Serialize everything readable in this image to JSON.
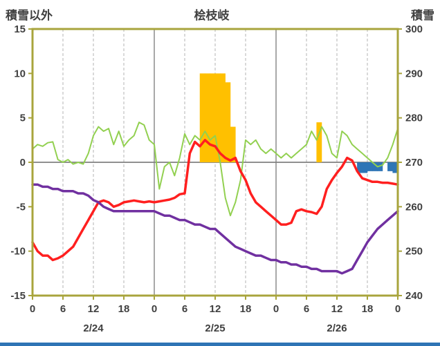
{
  "chart_data": {
    "type": "line",
    "title": "桧枝岐",
    "ylabel_left": "積雪以外",
    "ylabel_right": "積雪",
    "x_unit": "hour",
    "x_range": [
      0,
      72
    ],
    "x_ticks": {
      "positions": [
        0,
        6,
        12,
        18,
        24,
        30,
        36,
        42,
        48,
        54,
        60,
        66,
        72
      ],
      "labels": [
        "0",
        "6",
        "12",
        "18",
        "0",
        "6",
        "12",
        "18",
        "0",
        "6",
        "12",
        "18",
        "0"
      ]
    },
    "date_labels": [
      {
        "label": "2/24",
        "center_hour": 12
      },
      {
        "label": "2/25",
        "center_hour": 36
      },
      {
        "label": "2/26",
        "center_hour": 60
      }
    ],
    "left_axis": {
      "min": -15,
      "max": 15,
      "ticks": [
        15,
        10,
        5,
        0,
        -5,
        -10,
        -15
      ]
    },
    "right_axis": {
      "min": 240,
      "max": 300,
      "ticks": [
        300,
        290,
        280,
        270,
        260,
        250,
        240
      ]
    },
    "grid": {
      "vertical_minor": "dashed",
      "vertical_day_boundary": "solid",
      "horizontal": "zero-line-only"
    },
    "frame_color": "#A8A43C",
    "text_color": "#404040",
    "zero_line_color": "#808080",
    "minor_grid_color": "#b3b3b3",
    "day_grid_color": "#8c8c8c",
    "footer_bar_color": "#2E74B5",
    "series": [
      {
        "name": "orange-bars",
        "type": "bar",
        "axis": "left",
        "color": "#FFC000",
        "values_by_hour": {
          "33": 10,
          "34": 10,
          "35": 10,
          "36": 10,
          "37": 10,
          "38": 9,
          "39": 4,
          "56": 4.5
        }
      },
      {
        "name": "blue-bars",
        "type": "bar",
        "axis": "left",
        "color": "#2E75B6",
        "values_by_hour": {
          "64": -1.2,
          "65": -1.2,
          "66": -1,
          "67": -1,
          "68": -1,
          "70": -1,
          "71": -1.2
        }
      },
      {
        "name": "green-line",
        "type": "line",
        "axis": "left",
        "color": "#92D050",
        "width": 2,
        "values": [
          1.5,
          2.0,
          1.8,
          2.2,
          2.3,
          0.3,
          0.0,
          0.3,
          -0.2,
          0.0,
          -0.2,
          1.0,
          3.0,
          4.0,
          3.5,
          3.8,
          2.0,
          3.5,
          1.8,
          2.5,
          3.0,
          4.5,
          4.2,
          2.5,
          2.0,
          -3.0,
          -0.5,
          0.0,
          -1.5,
          0.5,
          3.2,
          2.0,
          3.0,
          2.5,
          3.5,
          2.5,
          3.0,
          0.0,
          -4.0,
          -6.0,
          -4.5,
          -2.0,
          2.5,
          2.0,
          2.5,
          1.5,
          1.0,
          1.5,
          1.0,
          0.5,
          1.0,
          0.5,
          1.0,
          1.5,
          2.0,
          3.5,
          2.5,
          4.0,
          3.0,
          1.0,
          0.5,
          3.5,
          3.0,
          2.0,
          1.5,
          1.0,
          0.5,
          0.0,
          -0.5,
          -0.3,
          0.5,
          2.0,
          3.8
        ]
      },
      {
        "name": "red-line",
        "type": "line",
        "axis": "left",
        "color": "#FF1F1F",
        "width": 3.5,
        "values": [
          -9.0,
          -10.0,
          -10.5,
          -10.5,
          -11.0,
          -10.8,
          -10.5,
          -10.0,
          -9.5,
          -8.5,
          -7.5,
          -6.5,
          -5.5,
          -4.5,
          -4.3,
          -4.5,
          -5.0,
          -4.8,
          -4.5,
          -4.4,
          -4.3,
          -4.4,
          -4.5,
          -4.4,
          -4.5,
          -4.4,
          -4.3,
          -4.2,
          -4.0,
          -3.6,
          -3.5,
          1.0,
          2.3,
          1.8,
          2.5,
          2.0,
          1.8,
          1.0,
          0.5,
          0.2,
          0.5,
          -1.0,
          -2.0,
          -3.5,
          -4.5,
          -5.0,
          -5.5,
          -6.0,
          -6.5,
          -7.0,
          -7.0,
          -6.8,
          -5.5,
          -5.3,
          -5.5,
          -5.6,
          -5.8,
          -5.0,
          -3.0,
          -2.0,
          -1.2,
          -0.5,
          0.5,
          0.2,
          -1.0,
          -1.8,
          -2.0,
          -2.2,
          -2.2,
          -2.3,
          -2.3,
          -2.4,
          -2.5
        ]
      },
      {
        "name": "purple-line",
        "type": "line",
        "axis": "right",
        "color": "#7030A0",
        "width": 3.5,
        "values": [
          265,
          265,
          264.5,
          264.5,
          264,
          264,
          263.5,
          263.5,
          263.5,
          263,
          263,
          262.5,
          261.5,
          261,
          260,
          259.5,
          259,
          259,
          259,
          259,
          259,
          259,
          259,
          259,
          259,
          258.5,
          258,
          258,
          257.5,
          257,
          257,
          256.5,
          256,
          256,
          255.5,
          255,
          255,
          254,
          253,
          252,
          251,
          250.5,
          250,
          249.5,
          249,
          249,
          248.5,
          248,
          248,
          247.5,
          247.5,
          247,
          247,
          246.5,
          246.5,
          246,
          246,
          245.5,
          245.5,
          245.5,
          245.5,
          245,
          245.5,
          246,
          248,
          250,
          252,
          253.5,
          255,
          256,
          257,
          258,
          259
        ]
      }
    ]
  }
}
